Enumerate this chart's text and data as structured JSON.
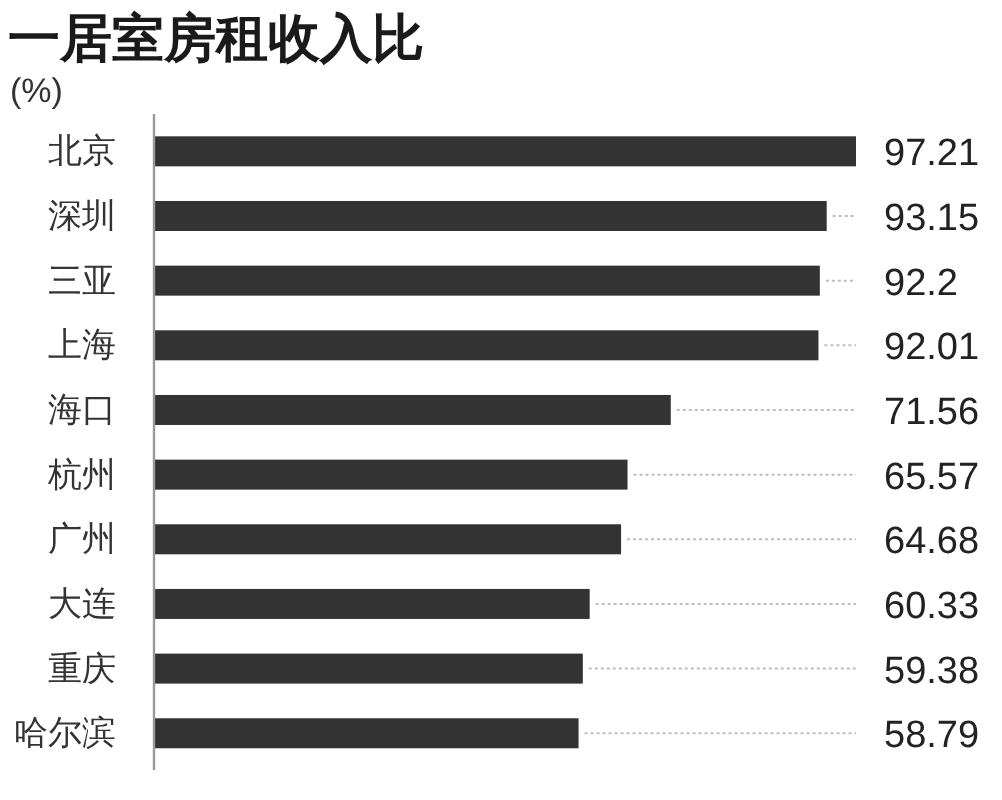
{
  "chart_data": {
    "type": "bar",
    "orientation": "horizontal",
    "title": "一居室房租收入比",
    "subtitle": "(%)",
    "categories": [
      "北京",
      "深圳",
      "三亚",
      "上海",
      "海口",
      "杭州",
      "广州",
      "大连",
      "重庆",
      "哈尔滨"
    ],
    "values": [
      97.21,
      93.15,
      92.2,
      92.01,
      71.56,
      65.57,
      64.68,
      60.33,
      59.38,
      58.79
    ],
    "value_labels": [
      "97.21",
      "93.15",
      "92.2",
      "92.01",
      "71.56",
      "65.57",
      "64.68",
      "60.33",
      "59.38",
      "58.79"
    ],
    "color": "#333333"
  }
}
